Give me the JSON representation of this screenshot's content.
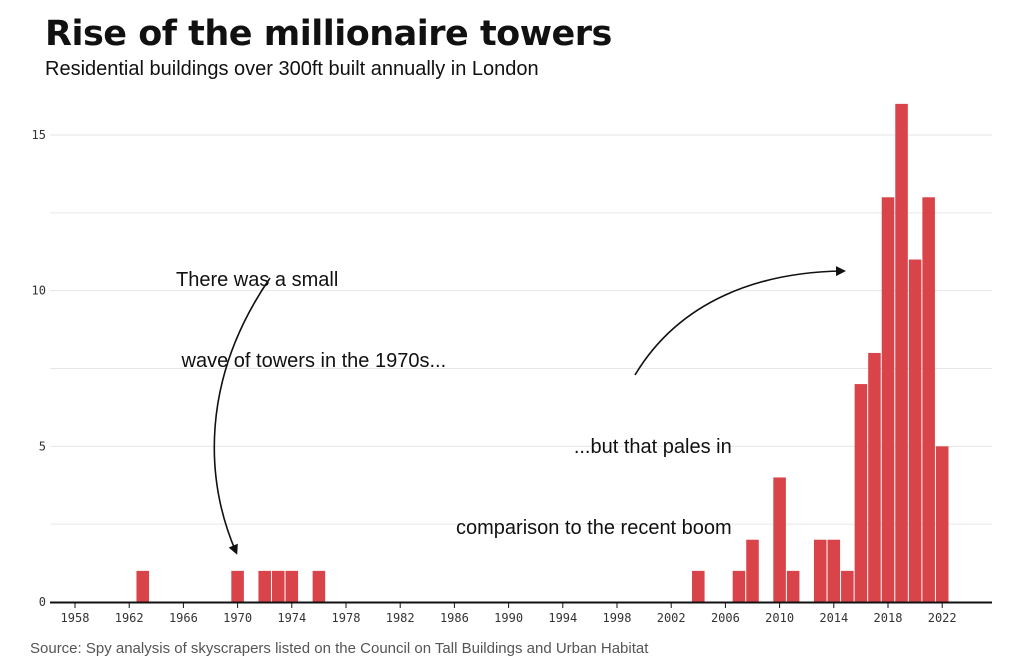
{
  "header": {
    "title": "Rise of the millionaire towers",
    "subtitle": "Residential buildings over 300ft built annually in London"
  },
  "footer": {
    "source": "Source: Spy analysis of skyscrapers listed on the Council on Tall Buildings and Urban Habitat"
  },
  "annotations": {
    "first": {
      "line1": "There was a small",
      "line2": " wave of towers in the 1970s..."
    },
    "second": {
      "line1": "...but that pales in",
      "line2": "comparison to the recent boom"
    }
  },
  "colors": {
    "bar": "#d9444a",
    "grid": "#e6e6e6",
    "axis": "#111111",
    "tick_text": "#333333"
  },
  "chart_data": {
    "type": "bar",
    "title": "Rise of the millionaire towers",
    "subtitle": "Residential buildings over 300ft built annually in London",
    "xlabel": "",
    "ylabel": "",
    "xlim": [
      1957,
      2024
    ],
    "ylim": [
      0,
      16
    ],
    "x_ticks": [
      1958,
      1962,
      1966,
      1970,
      1974,
      1978,
      1982,
      1986,
      1990,
      1994,
      1998,
      2002,
      2006,
      2010,
      2014,
      2018,
      2022
    ],
    "y_ticks": [
      0,
      5,
      10,
      15
    ],
    "grid": true,
    "years": [
      1963,
      1970,
      1972,
      1973,
      1974,
      1976,
      2004,
      2007,
      2008,
      2010,
      2011,
      2013,
      2014,
      2015,
      2016,
      2017,
      2018,
      2019,
      2020,
      2021,
      2022
    ],
    "values": [
      1,
      1,
      1,
      1,
      1,
      1,
      1,
      1,
      2,
      4,
      1,
      2,
      2,
      1,
      7,
      8,
      13,
      16,
      11,
      13,
      5
    ]
  }
}
